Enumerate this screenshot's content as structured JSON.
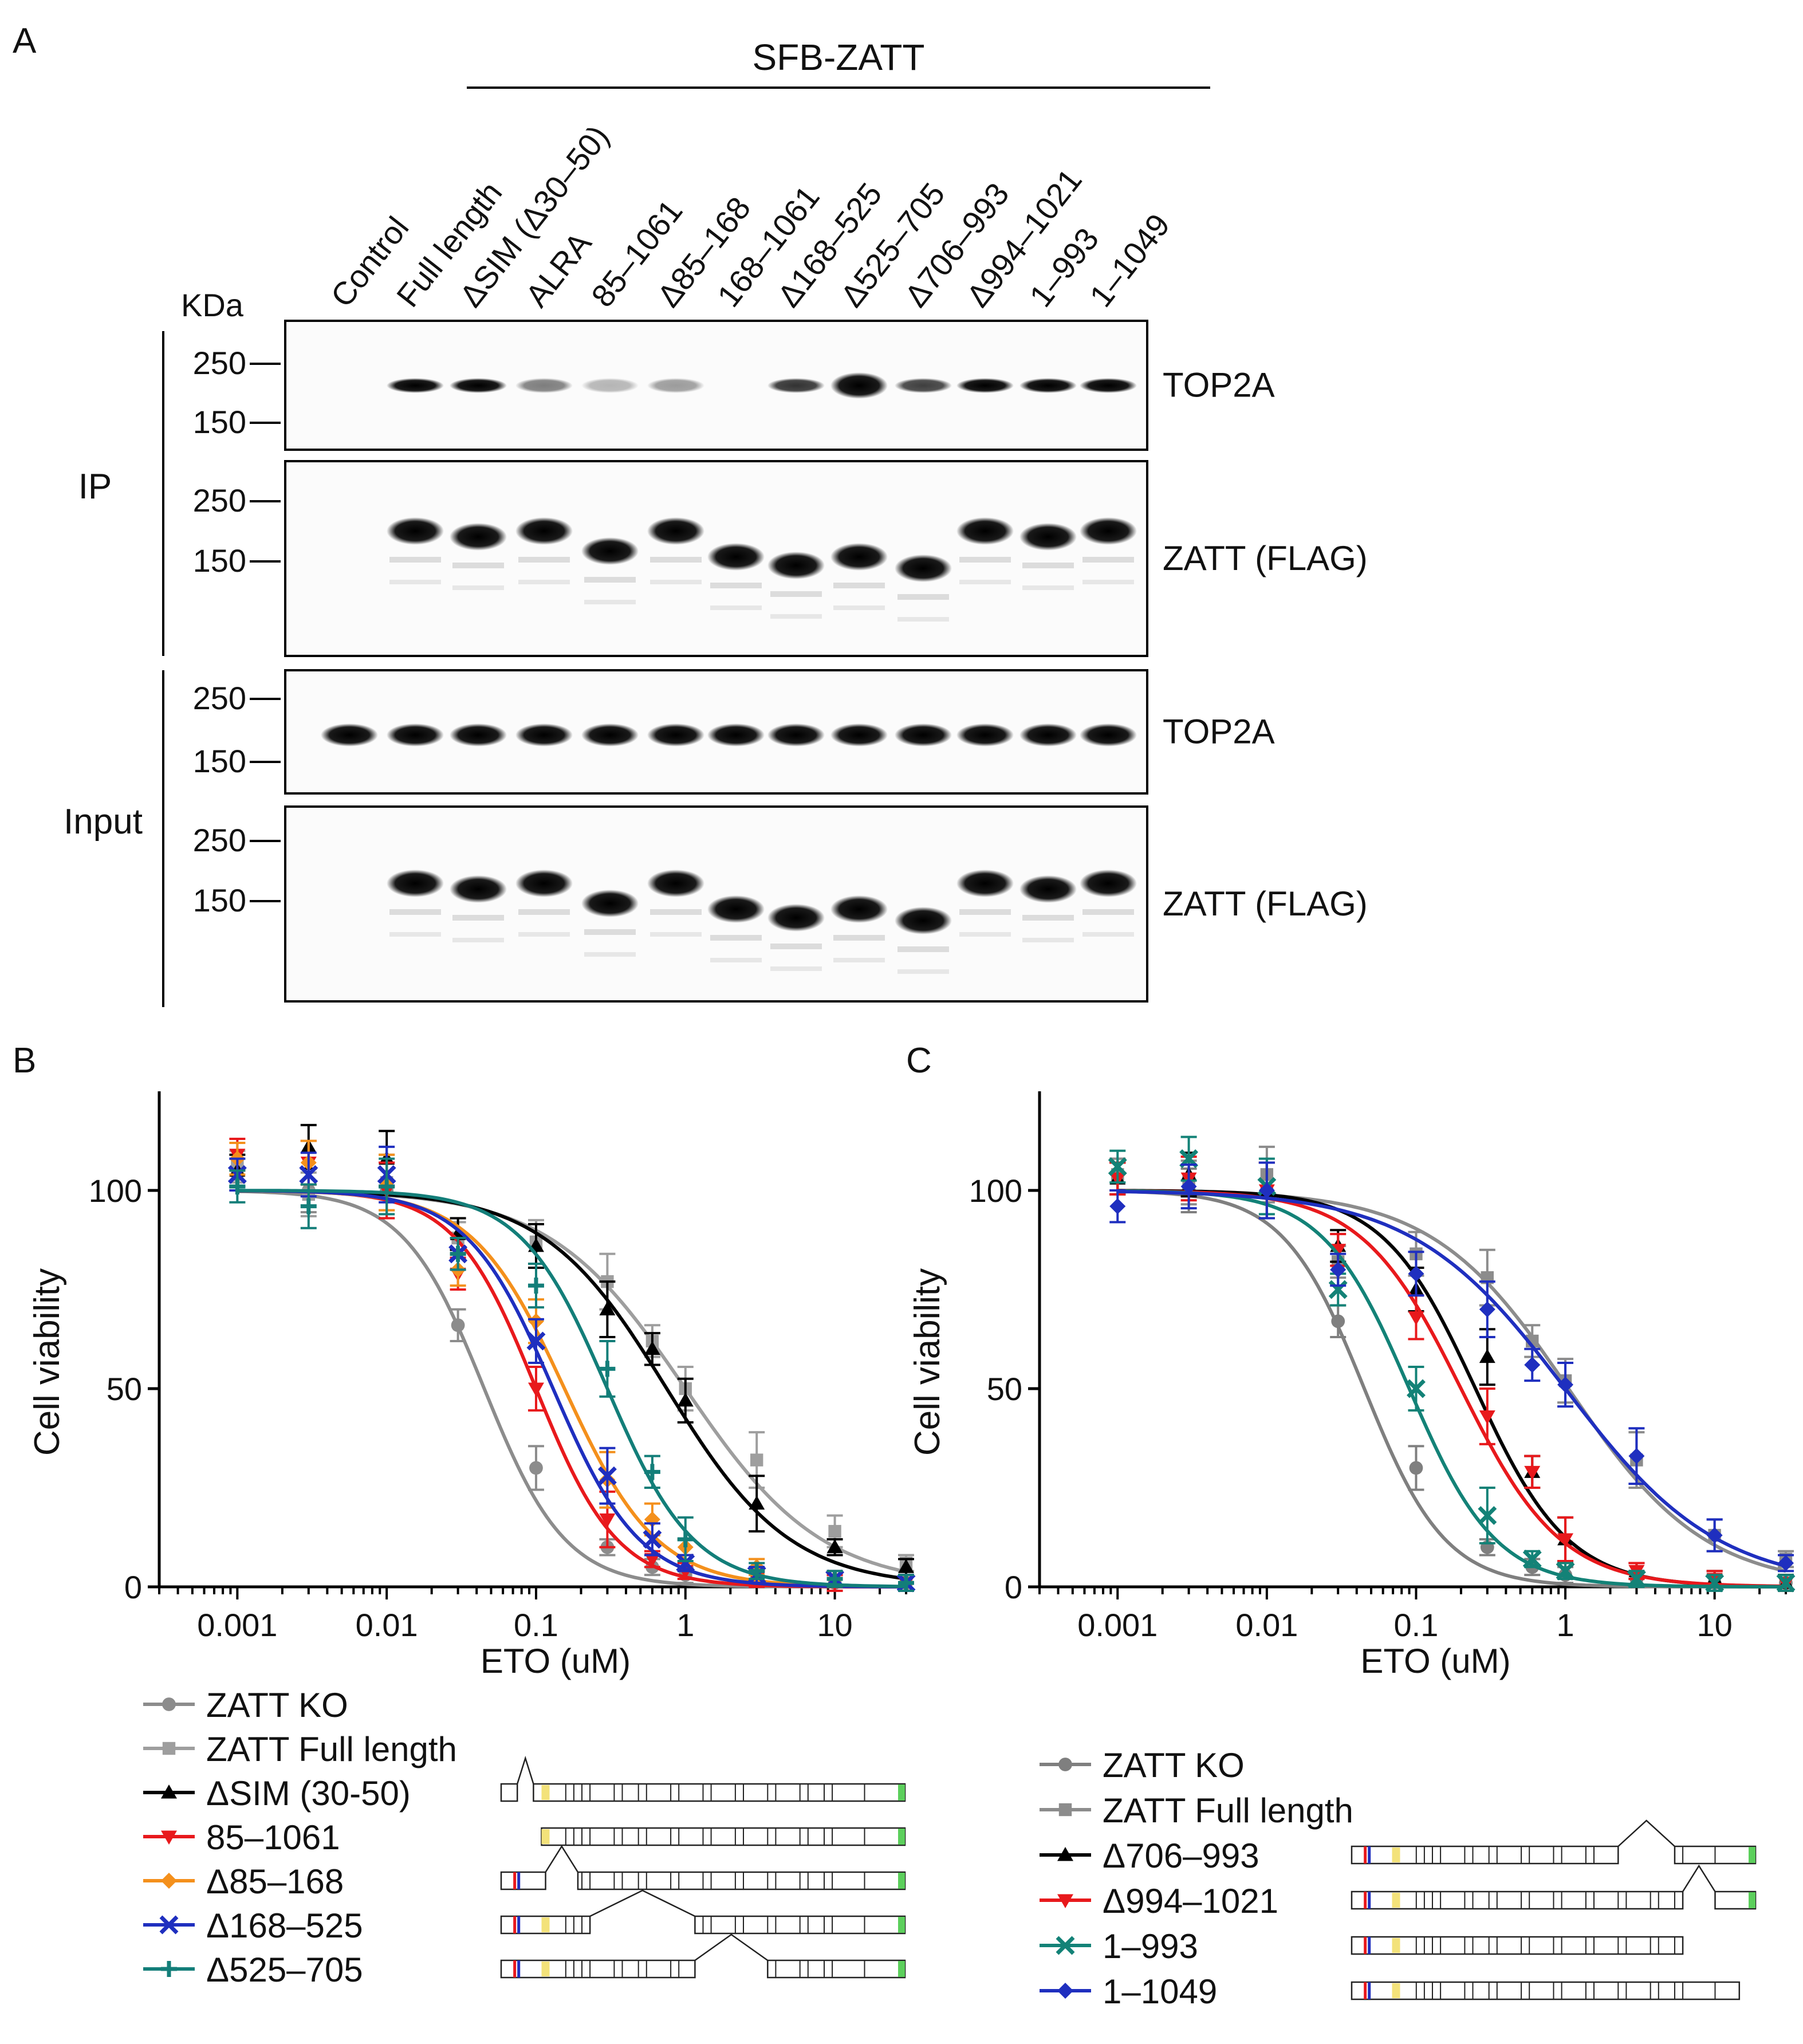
{
  "panel_a": {
    "panel_label": "A",
    "construct_group": "SFB-ZATT",
    "mw_unit": "KDa",
    "lanes": [
      "Control",
      "Full length",
      "ΔSIM (Δ30–50)",
      "ALRA",
      "85–1061",
      "Δ85–168",
      "168–1061",
      "Δ168–525",
      "Δ525–705",
      "Δ706–993",
      "Δ994–1021",
      "1–993",
      "1–1049"
    ],
    "section_labels": {
      "ip": "IP",
      "input": "Input"
    },
    "blots": [
      {
        "id": "ip-top2a",
        "target": "TOP2A",
        "markers": [
          "250",
          "150"
        ],
        "band_intensity": [
          0,
          0.85,
          0.85,
          0.3,
          0.08,
          0.18,
          0,
          0.6,
          1,
          0.55,
          0.85,
          0.85,
          0.8
        ]
      },
      {
        "id": "ip-zatt",
        "target": "ZATT (FLAG)",
        "markers": [
          "250",
          "150"
        ],
        "band_intensity": [
          0,
          1,
          1,
          1,
          0.9,
          1,
          0.95,
          1,
          1,
          1,
          1,
          0.95,
          1
        ]
      },
      {
        "id": "input-top2a",
        "target": "TOP2A",
        "markers": [
          "250",
          "150"
        ],
        "band_intensity": [
          1,
          1,
          1,
          1,
          1,
          1,
          0.95,
          1,
          1,
          0.9,
          0.9,
          1,
          1
        ]
      },
      {
        "id": "input-zatt",
        "target": "ZATT (FLAG)",
        "markers": [
          "250",
          "150"
        ],
        "band_intensity": [
          0,
          1,
          1,
          1,
          0.9,
          1,
          0.95,
          1,
          1,
          1,
          1,
          0.95,
          1
        ]
      }
    ]
  },
  "panel_b": {
    "panel_label": "B",
    "legend": [
      "ZATT KO",
      "ZATT Full length",
      "ΔSIM (30-50)",
      "85–1061",
      "Δ85–168",
      "Δ168–525",
      "Δ525–705"
    ]
  },
  "panel_c": {
    "panel_label": "C",
    "legend": [
      "ZATT KO",
      "ZATT Full length",
      "Δ706–993",
      "Δ994–1021",
      "1–993",
      "1–1049"
    ]
  },
  "chart_data": [
    {
      "type": "scatter",
      "panel": "B",
      "title": "",
      "xlabel": "ETO (uM)",
      "ylabel": "Cell viability",
      "xscale": "log",
      "xlim": [
        0.0003,
        30
      ],
      "ylim": [
        0,
        125
      ],
      "x_ticks": [
        "0.001",
        "0.01",
        "0.1",
        "1",
        "10"
      ],
      "y_ticks": [
        "0",
        "50",
        "100"
      ],
      "x": [
        0.001,
        0.003,
        0.01,
        0.03,
        0.1,
        0.3,
        0.6,
        1,
        3,
        10,
        30
      ],
      "series": [
        {
          "name": "ZATT KO",
          "color": "#8c8c8c",
          "marker": "circle",
          "ic50": 0.045,
          "hill": 1.6,
          "values": [
            104,
            100,
            100,
            66,
            30,
            10,
            5,
            3,
            2,
            1,
            1
          ]
        },
        {
          "name": "ZATT Full length",
          "color": "#9e9e9e",
          "marker": "square",
          "ic50": 1.0,
          "hill": 0.95,
          "values": [
            106,
            99,
            102,
            88,
            87,
            77,
            62,
            50,
            32,
            14,
            6
          ]
        },
        {
          "name": "ΔSIM (30-50)",
          "color": "#000000",
          "marker": "triangle-up",
          "ic50": 0.75,
          "hill": 1.05,
          "values": [
            105,
            111,
            108,
            89,
            86,
            70,
            60,
            47,
            21,
            10,
            5
          ]
        },
        {
          "name": "85–1061",
          "color": "#e8191c",
          "marker": "triangle-down",
          "ic50": 0.1,
          "hill": 1.6,
          "values": [
            109,
            107,
            100,
            79,
            50,
            17,
            7,
            4,
            2,
            1,
            1
          ]
        },
        {
          "name": "Δ85–168",
          "color": "#f4901c",
          "marker": "diamond",
          "ic50": 0.155,
          "hill": 1.4,
          "values": [
            108,
            107,
            102,
            80,
            67,
            27,
            17,
            10,
            5,
            2,
            1
          ]
        },
        {
          "name": "Δ168–525",
          "color": "#1f2fbf",
          "marker": "x",
          "ic50": 0.13,
          "hill": 1.5,
          "values": [
            104,
            104,
            104,
            84,
            62,
            28,
            12,
            6,
            3,
            2,
            1
          ]
        },
        {
          "name": "Δ525–705",
          "color": "#137e79",
          "marker": "plus",
          "ic50": 0.3,
          "hill": 1.5,
          "values": [
            101,
            96,
            101,
            84,
            76,
            55,
            29,
            12,
            4,
            2,
            1
          ]
        }
      ]
    },
    {
      "type": "scatter",
      "panel": "C",
      "title": "",
      "xlabel": "ETO (uM)",
      "ylabel": "Cell viability",
      "xscale": "log",
      "xlim": [
        0.0003,
        30
      ],
      "ylim": [
        0,
        125
      ],
      "x_ticks": [
        "0.001",
        "0.01",
        "0.1",
        "1",
        "10"
      ],
      "y_ticks": [
        "0",
        "50",
        "100"
      ],
      "x": [
        0.001,
        0.003,
        0.01,
        0.03,
        0.1,
        0.3,
        0.6,
        1,
        3,
        10,
        30
      ],
      "series": [
        {
          "name": "ZATT KO",
          "color": "#7f7f7f",
          "marker": "circle",
          "ic50": 0.045,
          "hill": 1.6,
          "values": [
            104,
            100,
            100,
            67,
            30,
            10,
            5,
            3,
            2,
            1,
            1
          ]
        },
        {
          "name": "ZATT Full length",
          "color": "#8c8c8c",
          "marker": "square",
          "ic50": 1.05,
          "hill": 0.95,
          "values": [
            104,
            102,
            104,
            82,
            84,
            78,
            62,
            52,
            32,
            13,
            7
          ]
        },
        {
          "name": "Δ706–993",
          "color": "#000000",
          "marker": "triangle-up",
          "ic50": 0.25,
          "hill": 1.4,
          "values": [
            103,
            104,
            100,
            86,
            75,
            58,
            29,
            12,
            4,
            2,
            1
          ]
        },
        {
          "name": "Δ994–1021",
          "color": "#e8191c",
          "marker": "triangle-down",
          "ic50": 0.2,
          "hill": 1.3,
          "values": [
            103,
            103,
            100,
            85,
            68,
            43,
            29,
            12,
            4,
            2,
            1
          ]
        },
        {
          "name": "1–993",
          "color": "#138277",
          "marker": "x",
          "ic50": 0.09,
          "hill": 1.5,
          "values": [
            106,
            108,
            101,
            75,
            50,
            18,
            7,
            4,
            2,
            1,
            1
          ]
        },
        {
          "name": "1–1049",
          "color": "#1f2fbf",
          "marker": "diamond",
          "ic50": 1.0,
          "hill": 0.85,
          "values": [
            96,
            101,
            100,
            80,
            79,
            70,
            56,
            51,
            33,
            13,
            6
          ]
        }
      ]
    }
  ]
}
